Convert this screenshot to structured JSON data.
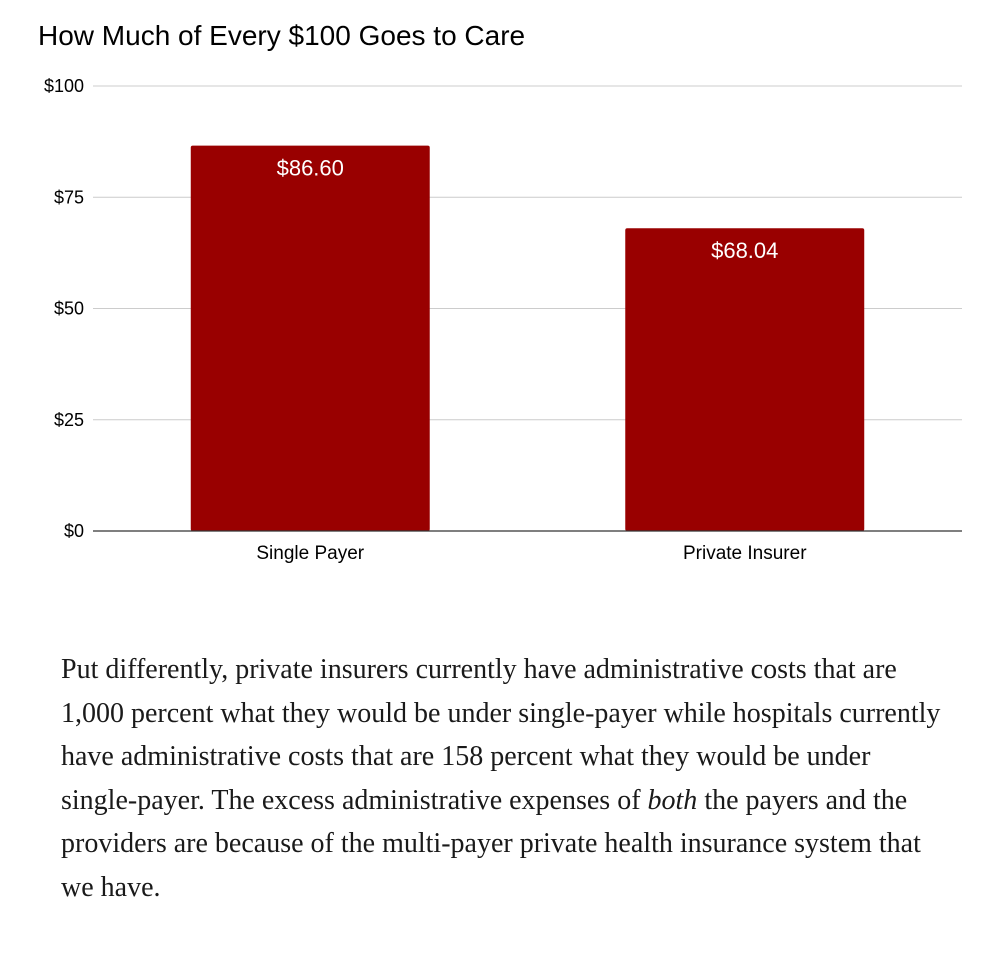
{
  "chart_data": {
    "type": "bar",
    "title": "How Much of Every $100 Goes to Care",
    "categories": [
      "Single Payer",
      "Private Insurer"
    ],
    "values": [
      86.6,
      68.04
    ],
    "data_labels": [
      "$86.60",
      "$68.04"
    ],
    "xlabel": "",
    "ylabel": "",
    "ylim": [
      0,
      100
    ],
    "y_ticks": [
      0,
      25,
      50,
      75,
      100
    ],
    "y_tick_labels": [
      "$0",
      "$25",
      "$50",
      "$75",
      "$100"
    ],
    "grid": true,
    "legend": "none",
    "bar_color": "#990000"
  },
  "article": {
    "part1": "Put differently, private insurers currently have administrative costs that are 1,000 percent what they would be under single-payer while hospitals currently have administrative costs that are 158 percent what they would be under single-payer. The excess administrative expenses of ",
    "emphasis": "both",
    "part2": " the payers and the providers are because of the multi-payer private health insurance system that we have."
  }
}
